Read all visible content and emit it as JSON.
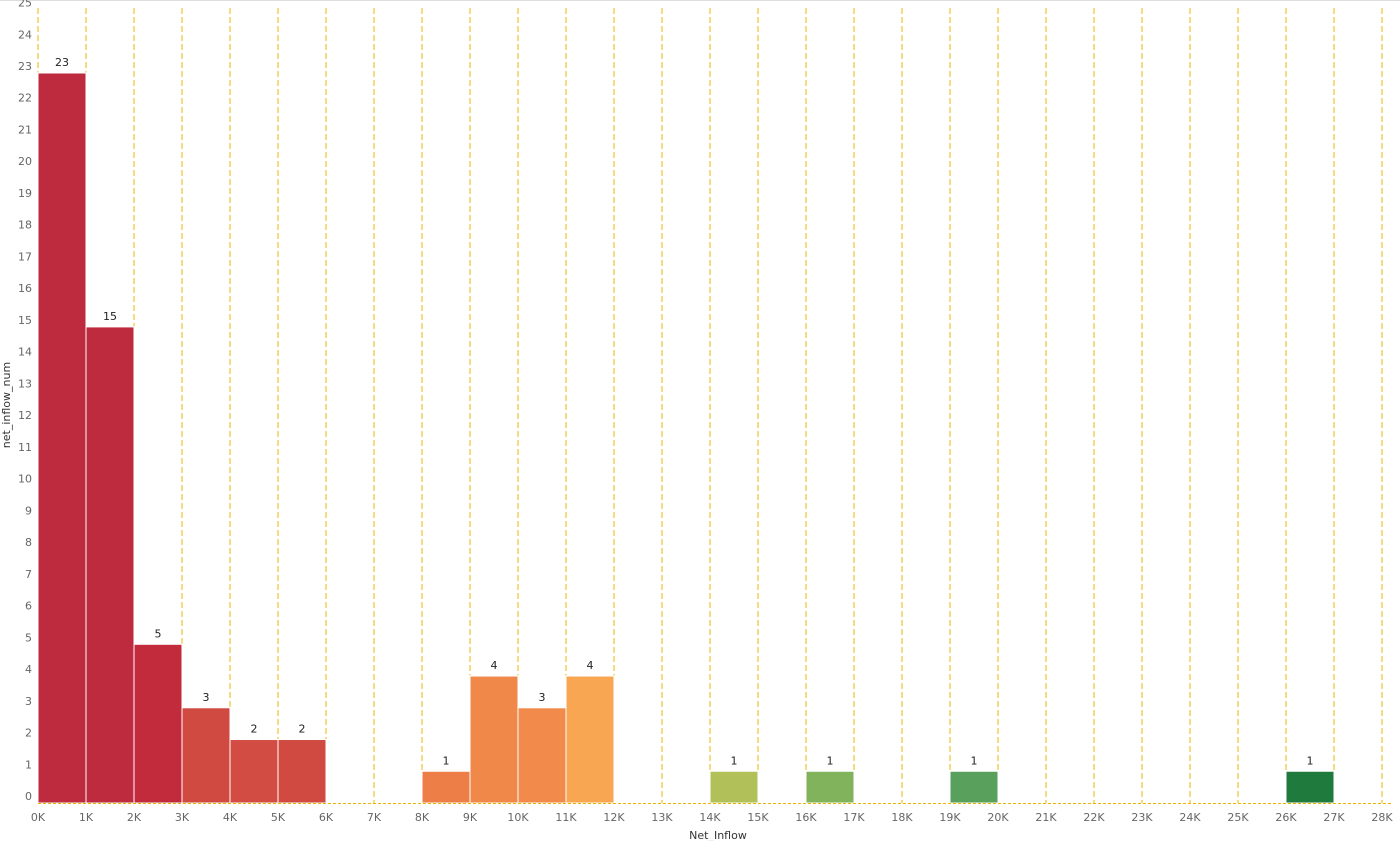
{
  "chart_data": {
    "type": "histogram",
    "x_label": "Net_Inflow",
    "y_label": "net_inflow_num",
    "bins": [
      0,
      1000,
      2000,
      3000,
      4000,
      5000,
      6000,
      7000,
      8000,
      9000,
      10000,
      11000,
      12000,
      13000,
      14000,
      15000,
      16000,
      17000,
      18000,
      19000,
      20000,
      21000,
      22000,
      23000,
      24000,
      25000,
      26000,
      27000,
      28000
    ],
    "values": [
      23,
      15,
      5,
      3,
      2,
      2,
      0,
      0,
      1,
      4,
      3,
      4,
      0,
      0,
      1,
      0,
      1,
      0,
      0,
      1,
      0,
      0,
      0,
      0,
      0,
      0,
      1,
      0
    ],
    "colors": [
      "#be2a3e",
      "#be2a3e",
      "#c12b3c",
      "#d04a42",
      "#d24c44",
      "#d04a42",
      null,
      null,
      "#ee7e48",
      "#f0884a",
      "#f28a4c",
      "#f8a652",
      null,
      null,
      "#b2c05a",
      null,
      "#80b35c",
      null,
      null,
      "#58a05c",
      null,
      null,
      null,
      null,
      null,
      null,
      "#1f7a3e",
      null
    ],
    "xlim": [
      0,
      28000
    ],
    "xticks": [
      {
        "value": 0,
        "label": "0K"
      },
      {
        "value": 1000,
        "label": "1K"
      },
      {
        "value": 2000,
        "label": "2K"
      },
      {
        "value": 3000,
        "label": "3K"
      },
      {
        "value": 4000,
        "label": "4K"
      },
      {
        "value": 5000,
        "label": "5K"
      },
      {
        "value": 6000,
        "label": "6K"
      },
      {
        "value": 7000,
        "label": "7K"
      },
      {
        "value": 8000,
        "label": "8K"
      },
      {
        "value": 9000,
        "label": "9K"
      },
      {
        "value": 10000,
        "label": "10K"
      },
      {
        "value": 11000,
        "label": "11K"
      },
      {
        "value": 12000,
        "label": "12K"
      },
      {
        "value": 13000,
        "label": "13K"
      },
      {
        "value": 14000,
        "label": "14K"
      },
      {
        "value": 15000,
        "label": "15K"
      },
      {
        "value": 16000,
        "label": "16K"
      },
      {
        "value": 17000,
        "label": "17K"
      },
      {
        "value": 18000,
        "label": "18K"
      },
      {
        "value": 19000,
        "label": "19K"
      },
      {
        "value": 20000,
        "label": "20K"
      },
      {
        "value": 21000,
        "label": "21K"
      },
      {
        "value": 22000,
        "label": "22K"
      },
      {
        "value": 23000,
        "label": "23K"
      },
      {
        "value": 24000,
        "label": "24K"
      },
      {
        "value": 25000,
        "label": "25K"
      },
      {
        "value": 26000,
        "label": "26K"
      },
      {
        "value": 27000,
        "label": "27K"
      },
      {
        "value": 28000,
        "label": "28K"
      }
    ],
    "ylim": [
      0,
      25.3
    ],
    "yticks": [
      0,
      1,
      2,
      3,
      4,
      5,
      6,
      7,
      8,
      9,
      10,
      11,
      12,
      13,
      14,
      15,
      16,
      17,
      18,
      19,
      20,
      21,
      22,
      23,
      24,
      25
    ],
    "grid": true,
    "grid_color": "#f0b400"
  }
}
